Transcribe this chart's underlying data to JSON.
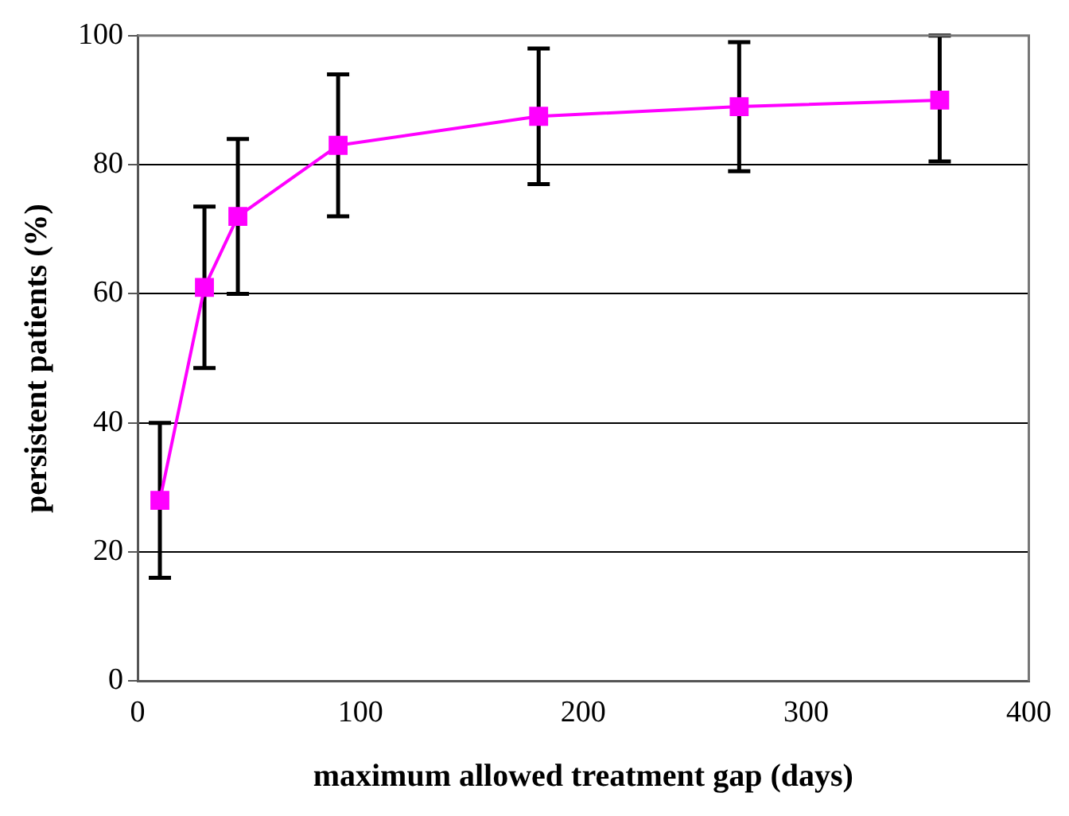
{
  "chart_data": {
    "type": "line",
    "xlabel": "maximum allowed treatment gap (days)",
    "ylabel": "persistent patients (%)",
    "x": [
      10,
      30,
      45,
      90,
      180,
      270,
      360
    ],
    "series": [
      {
        "color": "#ff00ff",
        "values": [
          28,
          61,
          72,
          83,
          87.5,
          89,
          90
        ],
        "errors": [
          [
            16,
            40
          ],
          [
            48.5,
            73.5
          ],
          [
            60,
            84
          ],
          [
            72,
            94
          ],
          [
            77,
            98
          ],
          [
            79,
            99
          ],
          [
            80.5,
            100
          ]
        ]
      }
    ],
    "xlim": [
      0,
      400
    ],
    "xticks": [
      0,
      100,
      200,
      300,
      400
    ],
    "ylim": [
      0,
      100
    ],
    "yticks": [
      0,
      20,
      40,
      60,
      80,
      100
    ],
    "grid": "y",
    "legend": false,
    "marker": "square",
    "line_style": "solid"
  }
}
